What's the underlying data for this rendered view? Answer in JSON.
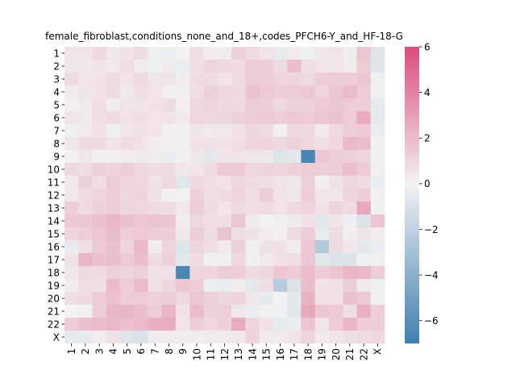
{
  "chart_data": {
    "type": "heatmap",
    "title": "female_fibroblast,conditions_none_and_18+,codes_PFCH6-Y_and_HF-18-G",
    "row_labels": [
      "1",
      "2",
      "3",
      "4",
      "5",
      "6",
      "7",
      "8",
      "9",
      "10",
      "11",
      "12",
      "13",
      "14",
      "15",
      "16",
      "17",
      "18",
      "19",
      "20",
      "21",
      "22",
      "X"
    ],
    "col_labels": [
      "1",
      "2",
      "3",
      "4",
      "5",
      "6",
      "7",
      "8",
      "9",
      "10",
      "11",
      "12",
      "13",
      "14",
      "15",
      "16",
      "17",
      "18",
      "19",
      "20",
      "21",
      "22",
      "X"
    ],
    "values": [
      [
        0.5,
        0.5,
        0.9,
        0.4,
        0.6,
        0.8,
        -0.1,
        -0.3,
        0,
        0.7,
        0.3,
        0.3,
        1.2,
        0.8,
        0.5,
        -0.4,
        0.3,
        -0.2,
        0.4,
        0.5,
        0.2,
        1.6,
        -0.8
      ],
      [
        0.5,
        0.4,
        0.5,
        0.3,
        0.7,
        0.2,
        -0.1,
        0.3,
        -0.3,
        0.7,
        1.1,
        0.9,
        0.8,
        1.4,
        1.3,
        0.8,
        1.9,
        0.7,
        0.5,
        0.5,
        0.2,
        1.4,
        -0.8
      ],
      [
        0.8,
        0.5,
        0.6,
        0.8,
        0.5,
        0.9,
        0.5,
        0.5,
        0.2,
        0.8,
        0.8,
        0.5,
        0.8,
        1.4,
        1.3,
        1.1,
        1.1,
        0.9,
        1.3,
        1.4,
        1.4,
        1.6,
        -0.2
      ],
      [
        0.3,
        0.5,
        0.6,
        0.8,
        0.3,
        0.7,
        0.5,
        0.1,
        0.1,
        0.7,
        1.2,
        1.0,
        0.8,
        1.8,
        1.5,
        1.3,
        1.4,
        1.5,
        1.1,
        1.6,
        2.0,
        1.4,
        -0.2
      ],
      [
        0.1,
        0.3,
        0.7,
        0.2,
        0.5,
        0.5,
        0.6,
        0.8,
        0.1,
        1.0,
        1.1,
        0.8,
        0.9,
        1.4,
        1.3,
        0.9,
        1.2,
        1.2,
        1.5,
        1.6,
        1.4,
        1.3,
        -0.5
      ],
      [
        0.5,
        0.3,
        0.7,
        0.8,
        0.6,
        0.7,
        0.5,
        0.6,
        0.3,
        1.0,
        1.0,
        1.0,
        1.2,
        1.4,
        1.5,
        1.3,
        1.5,
        1.4,
        1.6,
        1.7,
        1.4,
        2.5,
        -0.5
      ],
      [
        -0.2,
        0.3,
        0.6,
        -0.2,
        0.4,
        0.6,
        0.5,
        0.1,
        0.1,
        0.5,
        0.3,
        0.4,
        0.6,
        1.0,
        0.8,
        0.1,
        0.9,
        0.9,
        0.3,
        0.9,
        1.3,
        1.5,
        -0.3
      ],
      [
        0.4,
        0.8,
        0.8,
        0.5,
        0.8,
        0.6,
        0.2,
        0.1,
        0.1,
        0.6,
        0.6,
        0.6,
        0.7,
        1.1,
        1.1,
        0.9,
        1.2,
        1.0,
        0.7,
        1.0,
        2.1,
        1.9,
        0.1
      ],
      [
        0.1,
        0.4,
        0.1,
        0.1,
        0.3,
        0.3,
        0.2,
        -0.3,
        0.1,
        0.4,
        -0.6,
        0.5,
        0.5,
        0.4,
        0.4,
        -0.8,
        -0.6,
        -6.6,
        1.6,
        1.3,
        1.2,
        1.1,
        -0.1
      ],
      [
        1.0,
        0.7,
        1.2,
        1.1,
        1.3,
        1.0,
        0.8,
        0.8,
        0.4,
        0.5,
        0.8,
        1.5,
        1.5,
        1.0,
        1.1,
        1.1,
        1.2,
        1.4,
        1.3,
        1.4,
        1.9,
        1.4,
        -0.2
      ],
      [
        0.4,
        1.2,
        0.7,
        1.4,
        1.1,
        1.0,
        0.6,
        0.9,
        -0.7,
        0.9,
        0.7,
        0.6,
        1.0,
        0.8,
        0.7,
        0.5,
        0.4,
        1.2,
        0.1,
        0.6,
        1.0,
        0.8,
        -0.3
      ],
      [
        0.4,
        0.8,
        1.1,
        1.3,
        1.0,
        1.1,
        0.6,
        0.1,
        0.0,
        1.2,
        0.7,
        0.8,
        1.1,
        0.7,
        1.4,
        0.6,
        0.4,
        1.3,
        0.5,
        0.5,
        1.1,
        1.3,
        -0.1
      ],
      [
        1.3,
        0.8,
        1.2,
        1.4,
        1.1,
        1.0,
        0.8,
        0.8,
        0.4,
        1.3,
        0.8,
        0.5,
        0.9,
        0.7,
        0.8,
        0.5,
        0.9,
        1.1,
        0.6,
        1.1,
        0.8,
        2.7,
        -0.1
      ],
      [
        1.5,
        1.6,
        1.8,
        2.1,
        1.8,
        1.6,
        1.7,
        1.6,
        0.2,
        1.0,
        0.7,
        0.7,
        1.6,
        0.3,
        0.0,
        -0.1,
        0.3,
        0.6,
        -0.6,
        0.5,
        -0.2,
        -0.9,
        1.6
      ],
      [
        1.1,
        1.3,
        1.6,
        2.0,
        1.3,
        1.5,
        1.4,
        1.3,
        0.4,
        1.3,
        0.8,
        1.7,
        0.7,
        0.6,
        0.2,
        0.1,
        0.8,
        1.3,
        -0.4,
        0.8,
        0.2,
        0.5,
        0.2
      ],
      [
        -0.4,
        0.7,
        1.5,
        1.8,
        1.1,
        2.1,
        0.2,
        1.1,
        -0.8,
        1.1,
        0.7,
        0.3,
        1.2,
        -0.2,
        0.6,
        0.6,
        0.2,
        1.6,
        -2.5,
        0.8,
        0.4,
        -0.6,
        -0.3
      ],
      [
        0.6,
        2.2,
        1.8,
        1.9,
        1.5,
        1.9,
        0.8,
        1.2,
        -0.6,
        0.8,
        -0.1,
        -0.1,
        1.0,
        -0.1,
        0.3,
        0.6,
        0.7,
        1.6,
        -0.7,
        -0.9,
        -0.9,
        -0.2,
        -0.2
      ],
      [
        0.4,
        0.9,
        0.8,
        1.2,
        1.1,
        1.2,
        0.6,
        0.6,
        -6.6,
        1.1,
        1.1,
        1.4,
        1.3,
        0.8,
        1.0,
        1.6,
        1.4,
        1.9,
        1.3,
        1.6,
        2.2,
        2.1,
        1.3
      ],
      [
        0.2,
        0.7,
        0.7,
        2.0,
        1.4,
        2.0,
        0.6,
        1.0,
        1.6,
        1.3,
        -0.3,
        -0.3,
        0.2,
        -0.6,
        0.7,
        -2.3,
        -0.9,
        2.0,
        0.6,
        0.6,
        1.3,
        0.3,
        -0.2
      ],
      [
        0.7,
        0.8,
        1.4,
        1.8,
        1.4,
        1.4,
        1.2,
        1.3,
        0.9,
        1.6,
        1.2,
        1.0,
        1.1,
        0.4,
        -0.5,
        0.0,
        -0.6,
        2.3,
        0.6,
        0.6,
        1.8,
        1.5,
        -0.1
      ],
      [
        0.0,
        0.1,
        1.3,
        2.2,
        2.2,
        1.9,
        1.4,
        2.2,
        0.6,
        2.0,
        1.2,
        1.3,
        0.4,
        -0.3,
        0.1,
        -0.1,
        -0.7,
        2.7,
        1.6,
        1.5,
        0.7,
        2.4,
        1.3
      ],
      [
        1.4,
        1.8,
        2.0,
        2.1,
        1.8,
        2.0,
        2.4,
        2.5,
        0.5,
        1.3,
        1.0,
        1.2,
        2.6,
        1.1,
        0.6,
        -0.5,
        -0.3,
        1.6,
        0.5,
        1.4,
        2.2,
        1.4,
        1.3
      ],
      [
        -0.5,
        -0.5,
        0.2,
        0.6,
        -0.8,
        -1.0,
        0.2,
        0.3,
        0.2,
        0.2,
        0.3,
        0.3,
        0.4,
        1.1,
        0.3,
        0.3,
        0.5,
        1.1,
        0.3,
        0.5,
        0.7,
        0.8,
        1.0
      ]
    ],
    "colorbar": {
      "min": -7,
      "max": 6,
      "ticks": [
        6,
        4,
        2,
        0,
        -2,
        -4,
        -6
      ]
    },
    "colors": {
      "negative": "#3f7faf",
      "center": "#f2f2f2",
      "positive": "#db4d79"
    }
  }
}
